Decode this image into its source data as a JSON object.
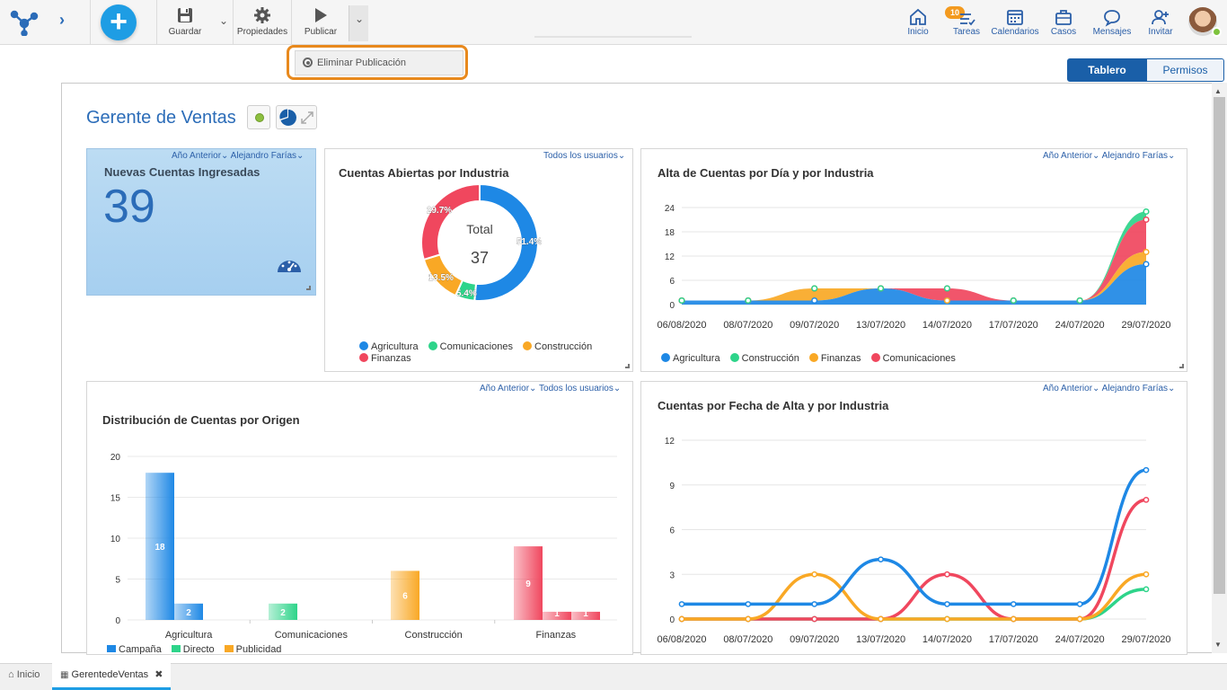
{
  "toolbar": {
    "save_label": "Guardar",
    "properties_label": "Propiedades",
    "publish_label": "Publicar"
  },
  "nav": {
    "home_label": "Inicio",
    "tasks_label": "Tareas",
    "tasks_badge": "10",
    "calendars_label": "Calendarios",
    "cases_label": "Casos",
    "messages_label": "Mensajes",
    "invite_label": "Invitar"
  },
  "popup": {
    "item_label": "Eliminar Publicación"
  },
  "view_tabs": {
    "board": "Tablero",
    "permissions": "Permisos"
  },
  "dashboard": {
    "title": "Gerente de Ventas"
  },
  "kpi": {
    "filter_period": "Año Anterior",
    "filter_user": "Alejandro Farías",
    "title": "Nuevas Cuentas Ingresadas",
    "value": "39"
  },
  "donut": {
    "filter_user": "Todos los usuarios",
    "title": "Cuentas Abiertas por Industria",
    "center_label": "Total",
    "center_value": "37"
  },
  "area_card": {
    "filter_period": "Año Anterior",
    "filter_user": "Alejandro Farías",
    "title": "Alta de Cuentas por Día y por Industria"
  },
  "bar_card": {
    "filter_period": "Año Anterior",
    "filter_user": "Todos los usuarios",
    "title": "Distribución de Cuentas por Origen"
  },
  "line_card": {
    "filter_period": "Año Anterior",
    "filter_user": "Alejandro Farías",
    "title": "Cuentas por Fecha de Alta y por Industria"
  },
  "bottom_tabs": {
    "home": "Inicio",
    "current": "GerentedeVentas"
  },
  "colors": {
    "agricultura": "#1e88e5",
    "comunicaciones": "#2ed48a",
    "construccion": "#f9a825",
    "finanzas": "#f0475e",
    "accent": "#1a5fa8"
  },
  "chart_data": [
    {
      "type": "pie",
      "categories": [
        "Agricultura",
        "Comunicaciones",
        "Construcción",
        "Finanzas"
      ],
      "values": [
        51.4,
        5.4,
        13.5,
        29.7
      ],
      "labels": [
        "51.4%",
        "5.4%",
        "13.5%",
        "29.7%"
      ],
      "title": "Cuentas Abiertas por Industria"
    },
    {
      "type": "area",
      "title": "Alta de Cuentas por Día y por Industria",
      "x": [
        "06/08/2020",
        "08/07/2020",
        "09/07/2020",
        "13/07/2020",
        "14/07/2020",
        "17/07/2020",
        "24/07/2020",
        "29/07/2020"
      ],
      "yticks": [
        "0",
        "6",
        "12",
        "18",
        "24"
      ],
      "ylim": [
        0,
        24
      ],
      "series": [
        {
          "name": "Agricultura",
          "values": [
            1,
            1,
            1,
            4,
            1,
            1,
            1,
            10
          ]
        },
        {
          "name": "Construcción",
          "values": [
            0,
            0,
            3,
            0,
            0,
            0,
            0,
            3
          ]
        },
        {
          "name": "Finanzas",
          "values": [
            0,
            0,
            0,
            0,
            3,
            0,
            0,
            8
          ]
        },
        {
          "name": "Comunicaciones",
          "values": [
            0,
            0,
            0,
            0,
            0,
            0,
            0,
            2
          ]
        }
      ]
    },
    {
      "type": "bar",
      "title": "Distribución de Cuentas por Origen",
      "categories": [
        "Agricultura",
        "Comunicaciones",
        "Construcción",
        "Finanzas"
      ],
      "yticks": [
        "0",
        "5",
        "10",
        "15",
        "20"
      ],
      "ylim": [
        0,
        20
      ],
      "series": [
        {
          "name": "Campaña",
          "values": [
            18,
            0,
            0,
            0
          ],
          "labels": [
            "18",
            "",
            "",
            ""
          ]
        },
        {
          "name": "Directo",
          "values": [
            0,
            2,
            0,
            0
          ],
          "labels": [
            "",
            "2",
            "",
            ""
          ]
        },
        {
          "name": "Publicidad",
          "values": [
            0,
            0,
            0,
            0
          ],
          "labels": [
            "",
            "",
            "",
            ""
          ]
        }
      ],
      "bars": [
        {
          "category": 0,
          "value": 18,
          "label": "18",
          "color": "#1e88e5"
        },
        {
          "category": 0,
          "value": 2,
          "label": "2",
          "color": "#1e88e5"
        },
        {
          "category": 1,
          "value": 2,
          "label": "2",
          "color": "#2ed48a"
        },
        {
          "category": 2,
          "value": 6,
          "label": "6",
          "color": "#f9a825"
        },
        {
          "category": 3,
          "value": 9,
          "label": "9",
          "color": "#f0475e"
        },
        {
          "category": 3,
          "value": 1,
          "label": "1",
          "color": "#f0475e"
        },
        {
          "category": 3,
          "value": 1,
          "label": "1",
          "color": "#f0475e"
        }
      ]
    },
    {
      "type": "line",
      "title": "Cuentas por Fecha de Alta y por Industria",
      "x": [
        "06/08/2020",
        "08/07/2020",
        "09/07/2020",
        "13/07/2020",
        "14/07/2020",
        "17/07/2020",
        "24/07/2020",
        "29/07/2020"
      ],
      "yticks": [
        "0",
        "3",
        "6",
        "9",
        "12"
      ],
      "ylim": [
        0,
        12
      ],
      "series": [
        {
          "name": "Agricultura",
          "values": [
            1,
            1,
            1,
            4,
            1,
            1,
            1,
            10
          ]
        },
        {
          "name": "Construcción",
          "values": [
            0,
            0,
            3,
            0,
            0,
            0,
            0,
            3
          ]
        },
        {
          "name": "Finanzas",
          "values": [
            0,
            0,
            0,
            0,
            3,
            0,
            0,
            8
          ]
        },
        {
          "name": "Comunicaciones",
          "values": [
            0,
            0,
            0,
            0,
            0,
            0,
            0,
            2
          ]
        }
      ]
    }
  ]
}
